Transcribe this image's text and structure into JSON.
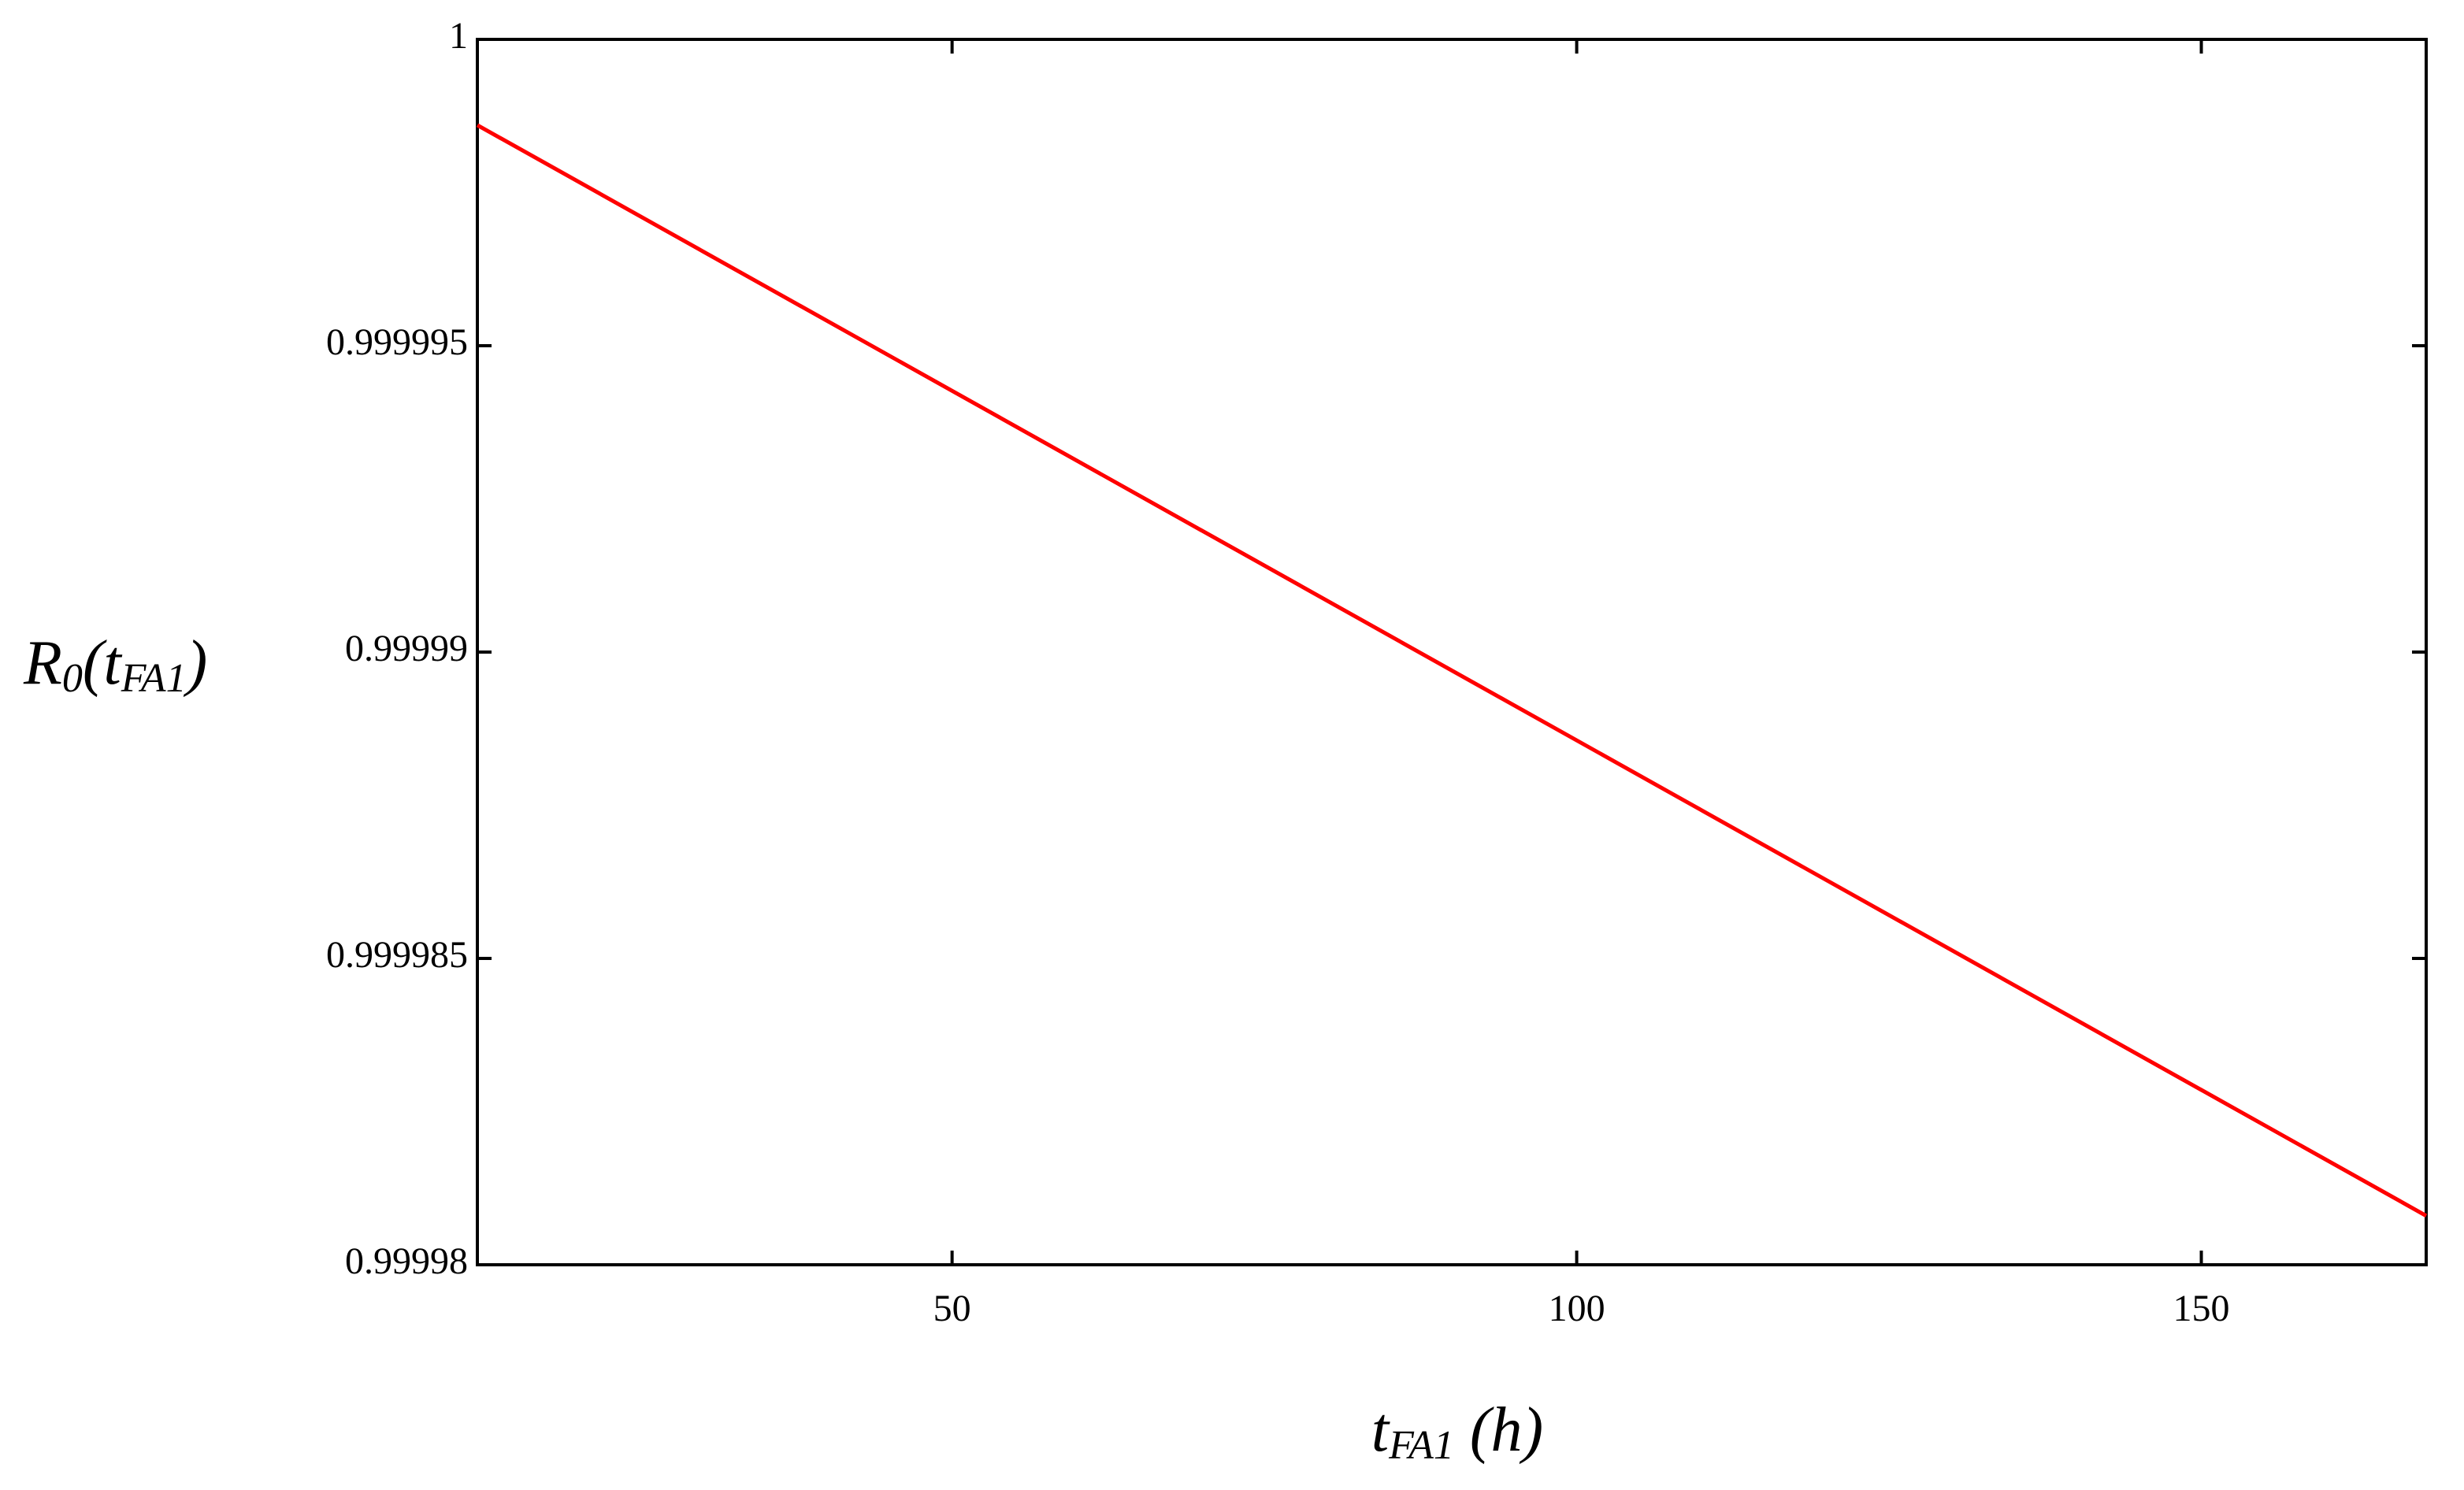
{
  "chart_data": {
    "type": "line",
    "y_label": [
      "R",
      "0",
      "(t",
      "FA1",
      ")"
    ],
    "x_label": [
      "t",
      "FA1",
      " (h)"
    ],
    "x": [
      12,
      168
    ],
    "series": [
      {
        "color": "#ff0000",
        "values": [
          0.9999986,
          0.9999808
        ]
      }
    ],
    "xlim": [
      12,
      168
    ],
    "xticks": [
      50,
      100,
      150
    ],
    "ylim": [
      0.99998,
      1
    ],
    "yticks": [
      1,
      0.999995,
      0.99999,
      0.999985,
      0.99998
    ],
    "grid": false
  }
}
